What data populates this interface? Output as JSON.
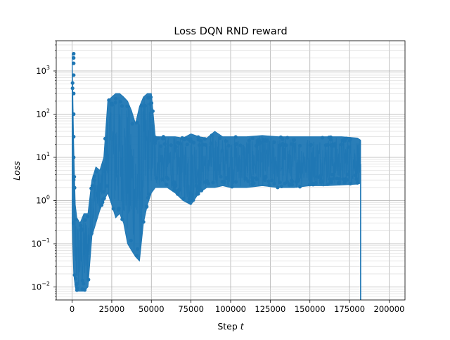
{
  "chart_data": {
    "type": "line",
    "title": "Loss DQN RND reward",
    "xlabel": "Step",
    "xlabel_var": "t",
    "ylabel": "Loss",
    "yscale": "log",
    "xlim": [
      -10000,
      210000
    ],
    "ylim": [
      0.005,
      5000
    ],
    "grid": "both (major and minor)",
    "x_ticks": [
      0,
      25000,
      50000,
      75000,
      100000,
      125000,
      150000,
      175000,
      200000
    ],
    "x_tick_labels": [
      "0",
      "25000",
      "50000",
      "75000",
      "100000",
      "125000",
      "150000",
      "175000",
      "200000"
    ],
    "y_ticks": [
      0.01,
      0.1,
      1,
      10,
      100,
      1000
    ],
    "y_tick_labels": [
      [
        "10",
        "−2"
      ],
      [
        "10",
        "−1"
      ],
      [
        "10",
        "0"
      ],
      [
        "10",
        "1"
      ],
      [
        "10",
        "2"
      ],
      [
        "10",
        "3"
      ]
    ],
    "series": [
      {
        "name": "Loss",
        "color": "#1f77b4",
        "marker": "circle",
        "description": "Per-step loss; dense band of points, shown as band of lower/upper envelope plus typical value",
        "x": [
          0,
          1000,
          2000,
          3000,
          5000,
          7500,
          10000,
          12500,
          15000,
          17500,
          20000,
          22500,
          25000,
          27500,
          30000,
          32500,
          35000,
          37500,
          40000,
          42500,
          45000,
          47500,
          50000,
          52500,
          55000,
          60000,
          65000,
          70000,
          75000,
          80000,
          85000,
          90000,
          95000,
          100000,
          110000,
          120000,
          130000,
          140000,
          150000,
          160000,
          170000,
          180000,
          182000
        ],
        "lower": [
          0.3,
          0.02,
          0.01,
          0.008,
          0.008,
          0.008,
          0.01,
          0.15,
          0.3,
          0.6,
          1.0,
          1.5,
          0.8,
          0.4,
          0.5,
          0.3,
          0.1,
          0.07,
          0.05,
          0.04,
          0.3,
          0.8,
          1.5,
          2.0,
          2.0,
          2.0,
          1.5,
          1.0,
          0.8,
          1.5,
          2.0,
          2.0,
          2.2,
          2.0,
          2.0,
          2.2,
          2.0,
          2.0,
          2.2,
          2.2,
          2.3,
          2.4,
          2.5
        ],
        "upper": [
          2500,
          20,
          0.8,
          0.4,
          0.3,
          0.5,
          0.5,
          3.0,
          6.0,
          5.0,
          10.0,
          200,
          250,
          300,
          300,
          250,
          200,
          120,
          60,
          150,
          250,
          300,
          300,
          30,
          30,
          30,
          30,
          28,
          35,
          30,
          28,
          40,
          30,
          30,
          30,
          32,
          30,
          30,
          30,
          30,
          30,
          28,
          25
        ],
        "typical": [
          5,
          0.5,
          0.05,
          0.03,
          0.03,
          0.03,
          0.05,
          1.0,
          1.5,
          2.0,
          3.0,
          10,
          10,
          8,
          8,
          6,
          3,
          2,
          1,
          2,
          10,
          15,
          10,
          8,
          8,
          8,
          7,
          6,
          6,
          7,
          7,
          8,
          8,
          7,
          7,
          7,
          7,
          7,
          7,
          7,
          7,
          7,
          7
        ],
        "final_drop": {
          "x": 182000,
          "y": 0.005
        }
      }
    ]
  }
}
